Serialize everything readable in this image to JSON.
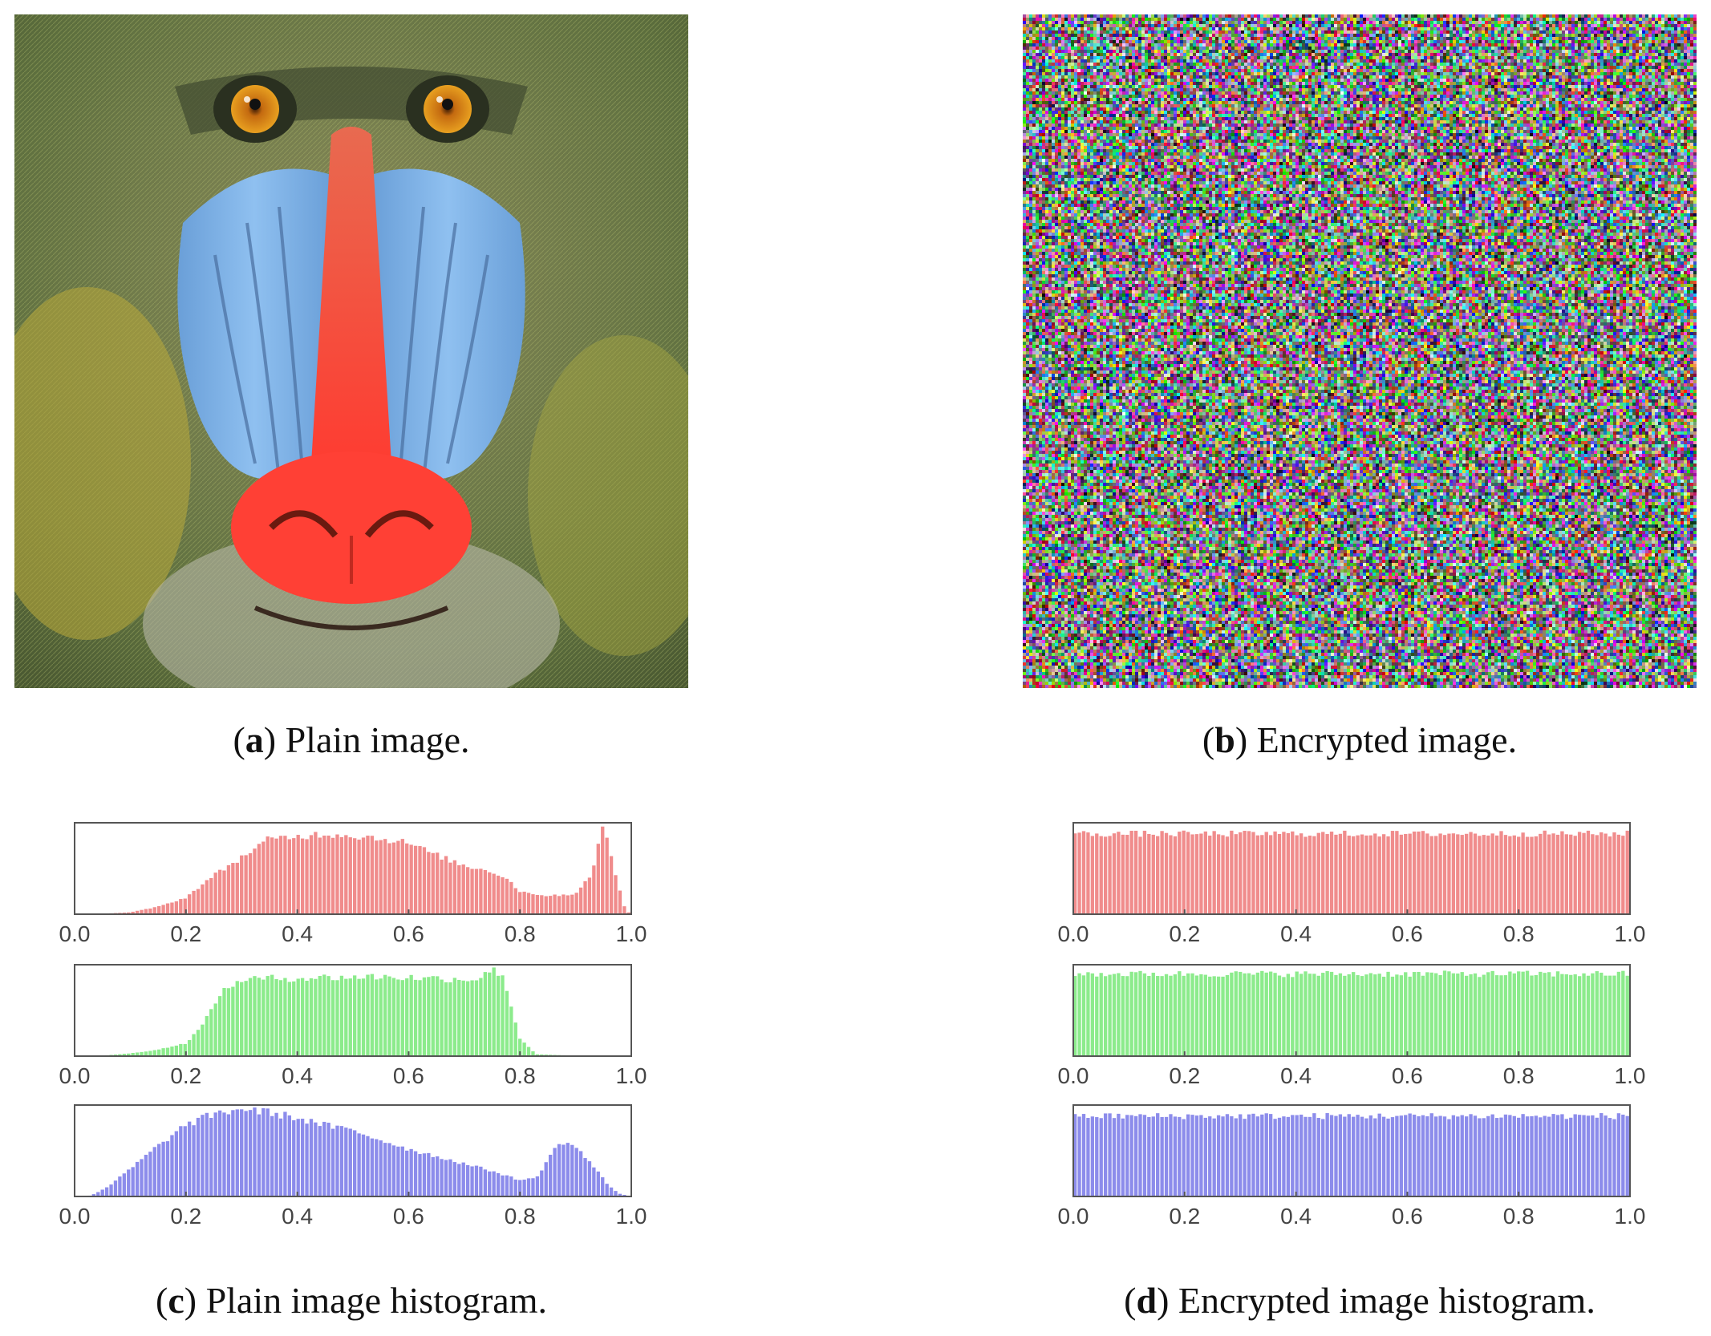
{
  "figure": {
    "captions": {
      "a": {
        "letter": "a",
        "text": "Plain image."
      },
      "b": {
        "letter": "b",
        "text": "Encrypted image."
      },
      "c": {
        "letter": "c",
        "text": "Plain image histogram."
      },
      "d": {
        "letter": "d",
        "text": "Encrypted image histogram."
      }
    },
    "panel_a_subject": "mandrill face photograph (baboon test image)",
    "panel_b_subject": "random colored noise image"
  },
  "colors": {
    "red_bars": "#f08c8c",
    "green_bars": "#8ceb8c",
    "blue_bars": "#8c8ceb",
    "axis_frame": "#555555",
    "tick_text": "#444444"
  },
  "chart_data": [
    {
      "id": "plain-red",
      "type": "bar",
      "channel": "red",
      "xlim": [
        0.0,
        1.0
      ],
      "xticks": [
        "0.0",
        "0.2",
        "0.4",
        "0.6",
        "0.8",
        "1.0"
      ],
      "profile": [
        [
          0.0,
          0
        ],
        [
          0.05,
          0.005
        ],
        [
          0.1,
          0.02
        ],
        [
          0.15,
          0.08
        ],
        [
          0.2,
          0.18
        ],
        [
          0.25,
          0.42
        ],
        [
          0.3,
          0.62
        ],
        [
          0.35,
          0.82
        ],
        [
          0.4,
          0.85
        ],
        [
          0.45,
          0.88
        ],
        [
          0.5,
          0.86
        ],
        [
          0.55,
          0.83
        ],
        [
          0.6,
          0.78
        ],
        [
          0.65,
          0.65
        ],
        [
          0.7,
          0.53
        ],
        [
          0.75,
          0.47
        ],
        [
          0.78,
          0.38
        ],
        [
          0.8,
          0.25
        ],
        [
          0.85,
          0.2
        ],
        [
          0.9,
          0.22
        ],
        [
          0.93,
          0.45
        ],
        [
          0.95,
          0.97
        ],
        [
          0.97,
          0.5
        ],
        [
          0.99,
          0.05
        ],
        [
          1.0,
          0
        ]
      ]
    },
    {
      "id": "plain-green",
      "type": "bar",
      "channel": "green",
      "xlim": [
        0.0,
        1.0
      ],
      "xticks": [
        "0.0",
        "0.2",
        "0.4",
        "0.6",
        "0.8",
        "1.0"
      ],
      "profile": [
        [
          0.0,
          0
        ],
        [
          0.05,
          0.005
        ],
        [
          0.1,
          0.03
        ],
        [
          0.15,
          0.07
        ],
        [
          0.2,
          0.14
        ],
        [
          0.23,
          0.33
        ],
        [
          0.26,
          0.67
        ],
        [
          0.3,
          0.84
        ],
        [
          0.35,
          0.85
        ],
        [
          0.45,
          0.86
        ],
        [
          0.55,
          0.87
        ],
        [
          0.65,
          0.85
        ],
        [
          0.72,
          0.84
        ],
        [
          0.75,
          0.94
        ],
        [
          0.77,
          0.9
        ],
        [
          0.8,
          0.2
        ],
        [
          0.83,
          0.02
        ],
        [
          0.9,
          0.005
        ],
        [
          1.0,
          0
        ]
      ]
    },
    {
      "id": "plain-blue",
      "type": "bar",
      "channel": "blue",
      "xlim": [
        0.0,
        1.0
      ],
      "xticks": [
        "0.0",
        "0.2",
        "0.4",
        "0.6",
        "0.8",
        "1.0"
      ],
      "profile": [
        [
          0.0,
          0
        ],
        [
          0.03,
          0.01
        ],
        [
          0.06,
          0.1
        ],
        [
          0.1,
          0.3
        ],
        [
          0.15,
          0.55
        ],
        [
          0.2,
          0.78
        ],
        [
          0.25,
          0.9
        ],
        [
          0.3,
          0.96
        ],
        [
          0.35,
          0.92
        ],
        [
          0.4,
          0.86
        ],
        [
          0.45,
          0.78
        ],
        [
          0.5,
          0.72
        ],
        [
          0.55,
          0.62
        ],
        [
          0.6,
          0.52
        ],
        [
          0.65,
          0.44
        ],
        [
          0.7,
          0.36
        ],
        [
          0.75,
          0.28
        ],
        [
          0.8,
          0.18
        ],
        [
          0.83,
          0.2
        ],
        [
          0.86,
          0.5
        ],
        [
          0.88,
          0.6
        ],
        [
          0.9,
          0.55
        ],
        [
          0.93,
          0.35
        ],
        [
          0.96,
          0.12
        ],
        [
          0.98,
          0.03
        ],
        [
          1.0,
          0
        ]
      ]
    },
    {
      "id": "encrypted-red",
      "type": "bar",
      "channel": "red",
      "xlim": [
        0.0,
        1.0
      ],
      "xticks": [
        "0.0",
        "0.2",
        "0.4",
        "0.6",
        "0.8",
        "1.0"
      ],
      "profile": [
        [
          0.0,
          0.88
        ],
        [
          1.0,
          0.88
        ]
      ],
      "jitter": 0.035
    },
    {
      "id": "encrypted-green",
      "type": "bar",
      "channel": "green",
      "xlim": [
        0.0,
        1.0
      ],
      "xticks": [
        "0.0",
        "0.2",
        "0.4",
        "0.6",
        "0.8",
        "1.0"
      ],
      "profile": [
        [
          0.0,
          0.9
        ],
        [
          1.0,
          0.9
        ]
      ],
      "jitter": 0.035
    },
    {
      "id": "encrypted-blue",
      "type": "bar",
      "channel": "blue",
      "xlim": [
        0.0,
        1.0
      ],
      "xticks": [
        "0.0",
        "0.2",
        "0.4",
        "0.6",
        "0.8",
        "1.0"
      ],
      "profile": [
        [
          0.0,
          0.88
        ],
        [
          1.0,
          0.88
        ]
      ],
      "jitter": 0.035
    }
  ]
}
